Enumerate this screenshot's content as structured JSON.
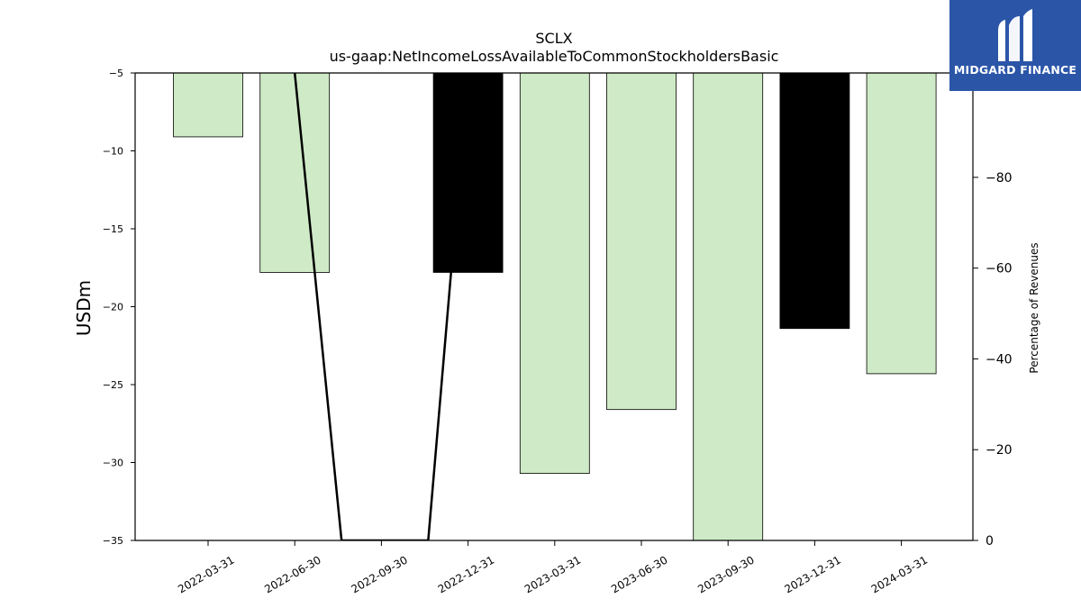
{
  "chart_data": {
    "type": "bar",
    "title": "SCLX",
    "subtitle": "us-gaap:NetIncomeLossAvailableToCommonStockholdersBasic",
    "ylabel": "USDm",
    "y2label": "Percentage of Revenues",
    "categories": [
      "2022-03-31",
      "2022-06-30",
      "2022-09-30",
      "2022-12-31",
      "2023-03-31",
      "2023-06-30",
      "2023-09-30",
      "2023-12-31",
      "2024-03-31"
    ],
    "values": [
      -9.1,
      -17.8,
      null,
      -17.8,
      -30.7,
      -26.6,
      -35.0,
      -21.4,
      -24.3
    ],
    "bar_colors": [
      "#cfeac6",
      "#cfeac6",
      null,
      "#000000",
      "#cfeac6",
      "#cfeac6",
      "#cfeac6",
      "#000000",
      "#cfeac6"
    ],
    "ylim": [
      -35,
      -5
    ],
    "yticks": [
      "−5",
      "−10",
      "−15",
      "−20",
      "−25",
      "−30",
      "−35"
    ],
    "ytick_values": [
      -5,
      -10,
      -15,
      -20,
      -25,
      -30,
      -35
    ],
    "y2lim": [
      0,
      -103
    ],
    "y2ticks": [
      "−80",
      "−60",
      "−40",
      "−20",
      "0"
    ],
    "y2tick_values": [
      -80,
      -60,
      -40,
      -20,
      0
    ],
    "line_series": {
      "x_index": [
        1,
        1.54,
        2.54,
        3
      ],
      "values": [
        -103,
        0,
        0,
        -103
      ]
    },
    "colors": {
      "positive_bar": "#cfeac6",
      "negative_bar": "#000000",
      "line": "#000000"
    }
  },
  "logo": {
    "text": "MIDGARD FINANCE",
    "color": "#2b56a8"
  }
}
